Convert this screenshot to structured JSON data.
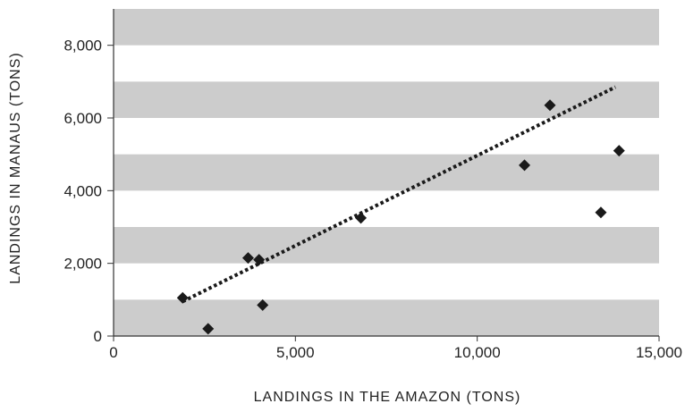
{
  "chart_data": {
    "type": "scatter",
    "title": "",
    "xlabel": "LANDINGS IN THE AMAZON (TONS)",
    "ylabel": "LANDINGS IN MANAUS (TONS)",
    "xlim": [
      0,
      15000
    ],
    "ylim": [
      0,
      9000
    ],
    "x_ticks": [
      0,
      5000,
      10000,
      15000
    ],
    "x_tick_labels": [
      "0",
      "5,000",
      "10,000",
      "15,000"
    ],
    "y_ticks": [
      0,
      2000,
      4000,
      6000,
      8000
    ],
    "y_tick_labels": [
      "0",
      "2,000",
      "4,000",
      "6,000",
      "8,000"
    ],
    "background_bands": [
      [
        0,
        1000
      ],
      [
        2000,
        3000
      ],
      [
        4000,
        5000
      ],
      [
        6000,
        7000
      ],
      [
        8000,
        9000
      ]
    ],
    "colors": {
      "band": "#cccccc",
      "marker": "#1a1a1a",
      "trendline": "#1a1a1a"
    },
    "marker": "diamond",
    "points": [
      {
        "x": 1900,
        "y": 1050
      },
      {
        "x": 2600,
        "y": 200
      },
      {
        "x": 3700,
        "y": 2150
      },
      {
        "x": 4000,
        "y": 2100
      },
      {
        "x": 4100,
        "y": 850
      },
      {
        "x": 6800,
        "y": 3250
      },
      {
        "x": 11300,
        "y": 4700
      },
      {
        "x": 12000,
        "y": 6350
      },
      {
        "x": 13400,
        "y": 3400
      },
      {
        "x": 13900,
        "y": 5100
      }
    ],
    "trendline": {
      "style": "dotted",
      "from": {
        "x": 1900,
        "y": 950
      },
      "to": {
        "x": 13800,
        "y": 6850
      }
    }
  }
}
